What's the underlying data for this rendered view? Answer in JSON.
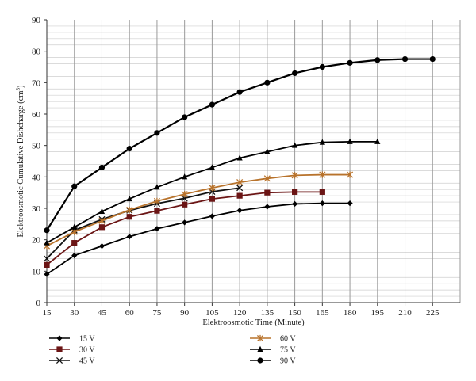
{
  "chart_data": {
    "type": "line",
    "title": "",
    "xlabel": "Elektroosmotic Time (Minute)",
    "ylabel_prefix": "Elektroosmotic Cumulative Dishcharge (cm",
    "ylabel_sup": "3",
    "ylabel_suffix": ")",
    "xlim": [
      15,
      240
    ],
    "ylim": [
      0,
      90
    ],
    "xticks": [
      15,
      30,
      45,
      60,
      75,
      90,
      105,
      120,
      135,
      150,
      165,
      180,
      195,
      210,
      225
    ],
    "yticks": [
      0,
      10,
      20,
      30,
      40,
      50,
      60,
      70,
      80,
      90
    ],
    "grid": "vertical major and horizontal minor gridlines",
    "legend_position": "bottom",
    "series": [
      {
        "name": "15 V",
        "color": "#000000",
        "marker": "diamond",
        "x": [
          15,
          30,
          45,
          60,
          75,
          90,
          105,
          120,
          135,
          150,
          165,
          180
        ],
        "y": [
          9,
          15,
          18,
          21,
          23.5,
          25.5,
          27.5,
          29.3,
          30.5,
          31.4,
          31.6,
          31.6
        ]
      },
      {
        "name": "30 V",
        "color": "#6b1515",
        "marker": "square",
        "x": [
          15,
          30,
          45,
          60,
          75,
          90,
          105,
          120,
          135,
          150,
          165
        ],
        "y": [
          12,
          19,
          24,
          27.3,
          29.2,
          31.2,
          33,
          34,
          35,
          35.2,
          35.2
        ]
      },
      {
        "name": "45 V",
        "color": "#111111",
        "marker": "x",
        "x": [
          15,
          30,
          45,
          60,
          75,
          90,
          105,
          120
        ],
        "y": [
          14,
          23,
          26.5,
          29.3,
          31.5,
          33.2,
          35.3,
          36.5
        ]
      },
      {
        "name": "60 V",
        "color": "#b8732c",
        "marker": "asterisk",
        "x": [
          15,
          30,
          45,
          60,
          75,
          90,
          105,
          120,
          135,
          150,
          165,
          180
        ],
        "y": [
          18,
          22.5,
          26,
          29.5,
          32.3,
          34.5,
          36.5,
          38.3,
          39.5,
          40.5,
          40.7,
          40.7
        ]
      },
      {
        "name": "75 V",
        "color": "#000000",
        "marker": "triangle",
        "x": [
          15,
          30,
          45,
          60,
          75,
          90,
          105,
          120,
          135,
          150,
          165,
          180,
          195
        ],
        "y": [
          19,
          24,
          29,
          33,
          36.7,
          40,
          43,
          46,
          48,
          50,
          51,
          51.2,
          51.2
        ]
      },
      {
        "name": "90 V",
        "color": "#000000",
        "marker": "circle",
        "x": [
          15,
          30,
          45,
          60,
          75,
          90,
          105,
          120,
          135,
          150,
          165,
          180,
          195,
          210,
          225
        ],
        "y": [
          23,
          37,
          43,
          49,
          54,
          59,
          63,
          67,
          70,
          73,
          75,
          76.3,
          77.2,
          77.5,
          77.5
        ]
      }
    ]
  }
}
